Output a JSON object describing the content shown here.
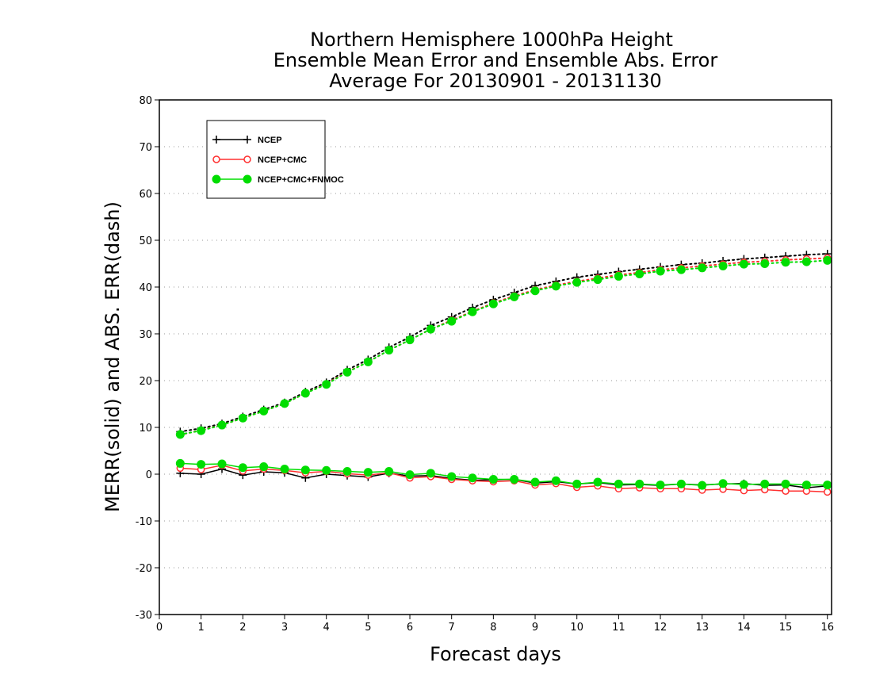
{
  "chart_data": {
    "type": "line",
    "title_lines": [
      "Northern Hemisphere 1000hPa Height",
      "Ensemble Mean Error and Ensemble Abs. Error",
      "Average For 20130901 - 20131130"
    ],
    "xlabel": "Forecast days",
    "ylabel": "MERR(solid) and ABS. ERR(dash)",
    "xlim": [
      0,
      16.1
    ],
    "ylim": [
      -30,
      80
    ],
    "x_ticks": [
      0,
      1,
      2,
      3,
      4,
      5,
      6,
      7,
      8,
      9,
      10,
      11,
      12,
      13,
      14,
      15,
      16
    ],
    "y_ticks": [
      -30,
      -20,
      -10,
      0,
      10,
      20,
      30,
      40,
      50,
      60,
      70,
      80
    ],
    "grid": "horizontal dotted",
    "legend_position": "top-left",
    "x": [
      0.5,
      1.0,
      1.5,
      2.0,
      2.5,
      3.0,
      3.5,
      4.0,
      4.5,
      5.0,
      5.5,
      6.0,
      6.5,
      7.0,
      7.5,
      8.0,
      8.5,
      9.0,
      9.5,
      10.0,
      10.5,
      11.0,
      11.5,
      12.0,
      12.5,
      13.0,
      13.5,
      14.0,
      14.5,
      15.0,
      15.5,
      16.0
    ],
    "series": [
      {
        "name": "NCEP",
        "color": "#000000",
        "marker": "plus",
        "merr": [
          0.2,
          0.0,
          1.1,
          -0.2,
          0.5,
          0.3,
          -0.8,
          0.0,
          -0.3,
          -0.6,
          0.2,
          -0.4,
          -0.3,
          -0.9,
          -1.3,
          -1.2,
          -1.1,
          -1.9,
          -1.6,
          -2.1,
          -1.8,
          -2.3,
          -2.2,
          -2.4,
          -2.1,
          -2.3,
          -2.1,
          -2.0,
          -2.4,
          -2.3,
          -2.9,
          -2.5
        ],
        "abserr": [
          9.1,
          9.8,
          10.8,
          12.3,
          13.8,
          15.3,
          17.6,
          19.6,
          22.3,
          24.5,
          27.1,
          29.3,
          31.8,
          33.6,
          35.6,
          37.3,
          38.8,
          40.3,
          41.2,
          42.1,
          42.7,
          43.3,
          43.8,
          44.3,
          44.8,
          45.1,
          45.6,
          46.0,
          46.3,
          46.6,
          46.9,
          47.1
        ]
      },
      {
        "name": "NCEP+CMC",
        "color": "#ff3030",
        "marker": "open-circle",
        "merr": [
          1.3,
          1.0,
          1.9,
          0.7,
          1.1,
          0.8,
          0.3,
          0.6,
          0.1,
          -0.2,
          0.3,
          -0.8,
          -0.5,
          -1.1,
          -1.4,
          -1.6,
          -1.4,
          -2.3,
          -2.0,
          -2.8,
          -2.5,
          -3.1,
          -2.9,
          -3.1,
          -3.1,
          -3.4,
          -3.2,
          -3.5,
          -3.3,
          -3.6,
          -3.6,
          -3.8
        ],
        "abserr": [
          8.4,
          9.4,
          10.5,
          12.0,
          13.5,
          15.1,
          17.3,
          19.3,
          21.9,
          24.0,
          26.5,
          28.7,
          31.0,
          32.9,
          34.8,
          36.6,
          38.1,
          39.4,
          40.4,
          41.2,
          41.9,
          42.6,
          43.1,
          43.7,
          44.1,
          44.5,
          44.9,
          45.3,
          45.5,
          45.8,
          46.0,
          46.2
        ]
      },
      {
        "name": "NCEP+CMC+FNMOC",
        "color": "#00dd00",
        "marker": "filled-circle",
        "merr": [
          2.3,
          2.1,
          2.2,
          1.4,
          1.6,
          1.1,
          0.9,
          0.8,
          0.6,
          0.4,
          0.6,
          -0.1,
          0.2,
          -0.5,
          -0.8,
          -1.1,
          -1.1,
          -1.7,
          -1.4,
          -2.1,
          -1.7,
          -2.1,
          -2.1,
          -2.3,
          -2.1,
          -2.4,
          -2.0,
          -2.2,
          -2.1,
          -2.1,
          -2.3,
          -2.3
        ],
        "abserr": [
          8.5,
          9.3,
          10.5,
          12.0,
          13.5,
          15.1,
          17.3,
          19.2,
          21.8,
          24.0,
          26.5,
          28.7,
          31.0,
          32.7,
          34.7,
          36.4,
          37.9,
          39.2,
          40.2,
          41.0,
          41.6,
          42.3,
          42.8,
          43.4,
          43.7,
          44.1,
          44.5,
          44.9,
          45.0,
          45.3,
          45.4,
          45.7
        ]
      }
    ]
  }
}
